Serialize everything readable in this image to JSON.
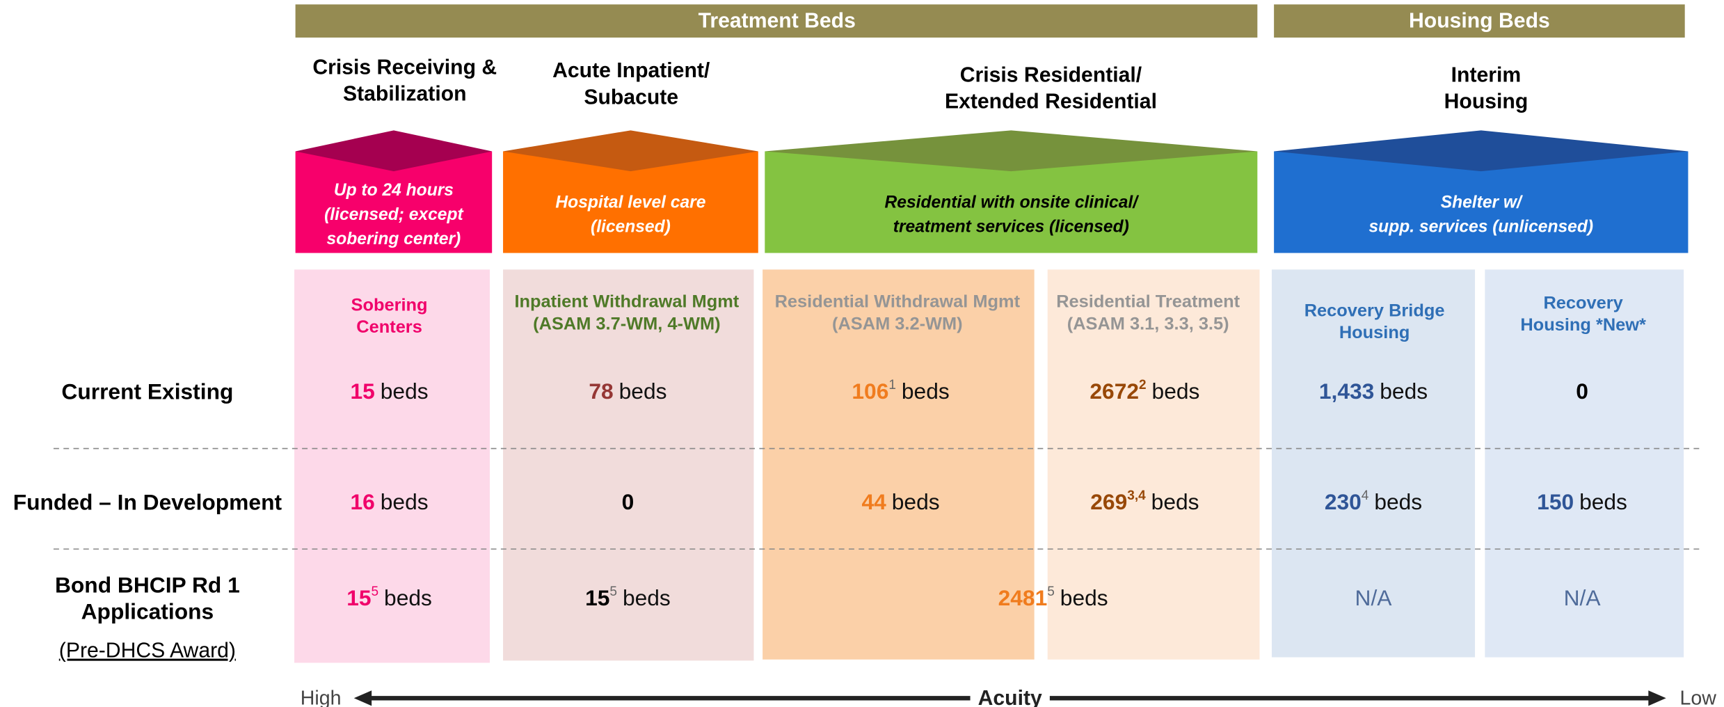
{
  "header": {
    "groups": [
      "Treatment Beds",
      "Housing Beds"
    ]
  },
  "levels": [
    {
      "title": [
        "Crisis Receiving &",
        "Stabilization"
      ],
      "description": [
        "Up to 24 hours",
        "(licensed; except",
        "sobering center)"
      ]
    },
    {
      "title": [
        "Acute Inpatient/",
        "Subacute"
      ],
      "description": [
        "Hospital level care",
        "(licensed)"
      ]
    },
    {
      "title": [
        "Crisis Residential/",
        "Extended Residential"
      ],
      "description": [
        "Residential with onsite clinical/",
        "treatment services (licensed)"
      ]
    },
    {
      "title": [
        "Interim",
        "Housing"
      ],
      "description": [
        "Shelter w/",
        "supp. services (unlicensed)"
      ]
    }
  ],
  "services": [
    [
      "Sobering",
      "Centers"
    ],
    [
      "Inpatient Withdrawal Mgmt",
      "(ASAM 3.7-WM, 4-WM)"
    ],
    [
      "Residential Withdrawal Mgmt",
      "(ASAM 3.2-WM)"
    ],
    [
      "Residential Treatment",
      "(ASAM 3.1, 3.3, 3.5)"
    ],
    [
      "Recovery Bridge",
      "Housing"
    ],
    [
      "Recovery",
      "Housing *New*"
    ]
  ],
  "rows": [
    {
      "label": [
        "Current Existing"
      ],
      "cells": [
        {
          "value": "15",
          "unit": "beds"
        },
        {
          "value": "78",
          "unit": "beds"
        },
        {
          "value": "106",
          "note": "1",
          "unit": "beds"
        },
        {
          "value": "2672",
          "note": "2",
          "unit": "beds"
        },
        {
          "value": "1,433",
          "unit": "beds"
        },
        {
          "value": "0"
        }
      ]
    },
    {
      "label": [
        "Funded – In Development"
      ],
      "cells": [
        {
          "value": "16",
          "unit": "beds"
        },
        {
          "value": "0"
        },
        {
          "value": "44",
          "unit": "beds"
        },
        {
          "value": "269",
          "note": "3,4",
          "unit": "beds"
        },
        {
          "value": "230",
          "note": "4",
          "unit": "beds"
        },
        {
          "value": "150",
          "unit": "beds"
        }
      ]
    },
    {
      "label": [
        "Bond BHCIP Rd 1",
        "Applications"
      ],
      "sublabel": "(Pre-DHCS Award)",
      "cells": [
        {
          "value": "15",
          "note": "5",
          "unit": "beds"
        },
        {
          "value": "15",
          "note": "5",
          "unit": "beds"
        },
        {
          "value": "2481",
          "note": "5",
          "unit": "beds"
        },
        {
          "value": "N/A"
        },
        {
          "value": "N/A"
        }
      ]
    }
  ],
  "axis": {
    "left": "High",
    "title": "Acuity",
    "right": "Low"
  }
}
